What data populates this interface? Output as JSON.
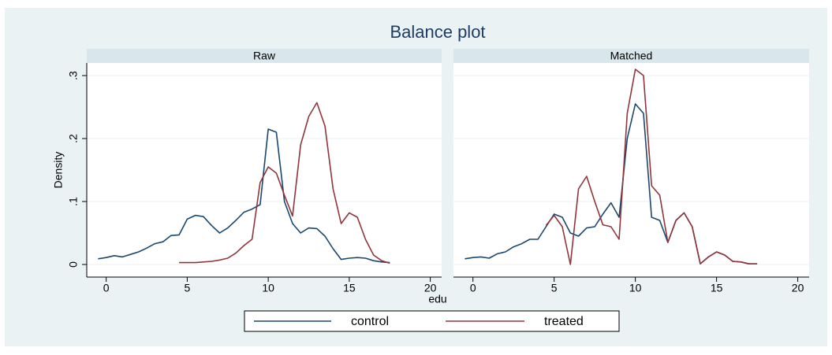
{
  "title": "Balance plot",
  "x_label": "edu",
  "y_label": "Density",
  "legend_position": "bottom",
  "grid": true,
  "chart_data": [
    {
      "type": "line",
      "title": "Raw",
      "x": [
        -0.5,
        0,
        0.5,
        1,
        1.5,
        2,
        2.5,
        3,
        3.5,
        4,
        4.5,
        5,
        5.5,
        6,
        6.5,
        7,
        7.5,
        8,
        8.5,
        9,
        9.5,
        10,
        10.5,
        11,
        11.5,
        12,
        12.5,
        13,
        13.5,
        14,
        14.5,
        15,
        15.5,
        16,
        16.5,
        17,
        17.5
      ],
      "xlim": [
        -1.2,
        20.7
      ],
      "xticks": [
        0,
        5,
        10,
        15,
        20
      ],
      "ylim": [
        -0.02,
        0.32
      ],
      "yticks": [
        0,
        {
          "value": 0.1,
          "label": ".1"
        },
        {
          "value": 0.2,
          "label": ".2"
        },
        {
          "value": 0.3,
          "label": ".3"
        }
      ],
      "series": [
        {
          "name": "control",
          "color": "#1a476f",
          "values": [
            0.009,
            0.011,
            0.014,
            0.012,
            0.016,
            0.02,
            0.026,
            0.033,
            0.036,
            0.046,
            0.047,
            0.072,
            0.078,
            0.076,
            0.062,
            0.05,
            0.058,
            0.07,
            0.083,
            0.088,
            0.095,
            0.215,
            0.21,
            0.1,
            0.065,
            0.05,
            0.058,
            0.057,
            0.045,
            0.025,
            0.008,
            0.01,
            0.011,
            0.01,
            0.006,
            0.004,
            0.003
          ]
        },
        {
          "name": "treated",
          "color": "#90353b",
          "values": [
            null,
            null,
            null,
            null,
            null,
            null,
            null,
            null,
            null,
            null,
            0.003,
            0.003,
            0.003,
            0.004,
            0.005,
            0.007,
            0.01,
            0.018,
            0.03,
            0.04,
            0.13,
            0.155,
            0.145,
            0.11,
            0.077,
            0.19,
            0.235,
            0.257,
            0.22,
            0.12,
            0.065,
            0.082,
            0.075,
            0.04,
            0.015,
            0.006,
            0.002
          ]
        }
      ]
    },
    {
      "type": "line",
      "title": "Matched",
      "x": [
        -0.5,
        0,
        0.5,
        1,
        1.5,
        2,
        2.5,
        3,
        3.5,
        4,
        4.5,
        5,
        5.5,
        6,
        6.5,
        7,
        7.5,
        8,
        8.5,
        9,
        9.5,
        10,
        10.5,
        11,
        11.5,
        12,
        12.5,
        13,
        13.5,
        14,
        14.5,
        15,
        15.5,
        16,
        16.5,
        17,
        17.5
      ],
      "xlim": [
        -1.2,
        20.7
      ],
      "xticks": [
        0,
        5,
        10,
        15,
        20
      ],
      "ylim": [
        -0.02,
        0.32
      ],
      "yticks": [
        0,
        0.1,
        0.2,
        0.3
      ],
      "series": [
        {
          "name": "control",
          "color": "#1a476f",
          "values": [
            0.009,
            0.011,
            0.012,
            0.01,
            0.017,
            0.02,
            0.028,
            0.033,
            0.04,
            0.04,
            0.06,
            0.08,
            0.075,
            0.05,
            0.045,
            0.058,
            0.06,
            0.08,
            0.098,
            0.075,
            0.2,
            0.255,
            0.24,
            0.075,
            0.07,
            0.035,
            0.07,
            0.082,
            0.06,
            0.001,
            0.012,
            0.02,
            0.015,
            0.005,
            0.004,
            0.001,
            0.001
          ]
        },
        {
          "name": "treated",
          "color": "#90353b",
          "values": [
            null,
            null,
            null,
            null,
            null,
            null,
            null,
            null,
            null,
            null,
            0.062,
            0.078,
            0.06,
            0,
            0.12,
            0.14,
            0.1,
            0.063,
            0.06,
            0.04,
            0.24,
            0.31,
            0.3,
            0.125,
            0.11,
            0.035,
            0.07,
            0.082,
            0.06,
            0.001,
            0.012,
            0.02,
            0.015,
            0.005,
            0.004,
            0.001,
            0.001
          ]
        }
      ]
    }
  ]
}
